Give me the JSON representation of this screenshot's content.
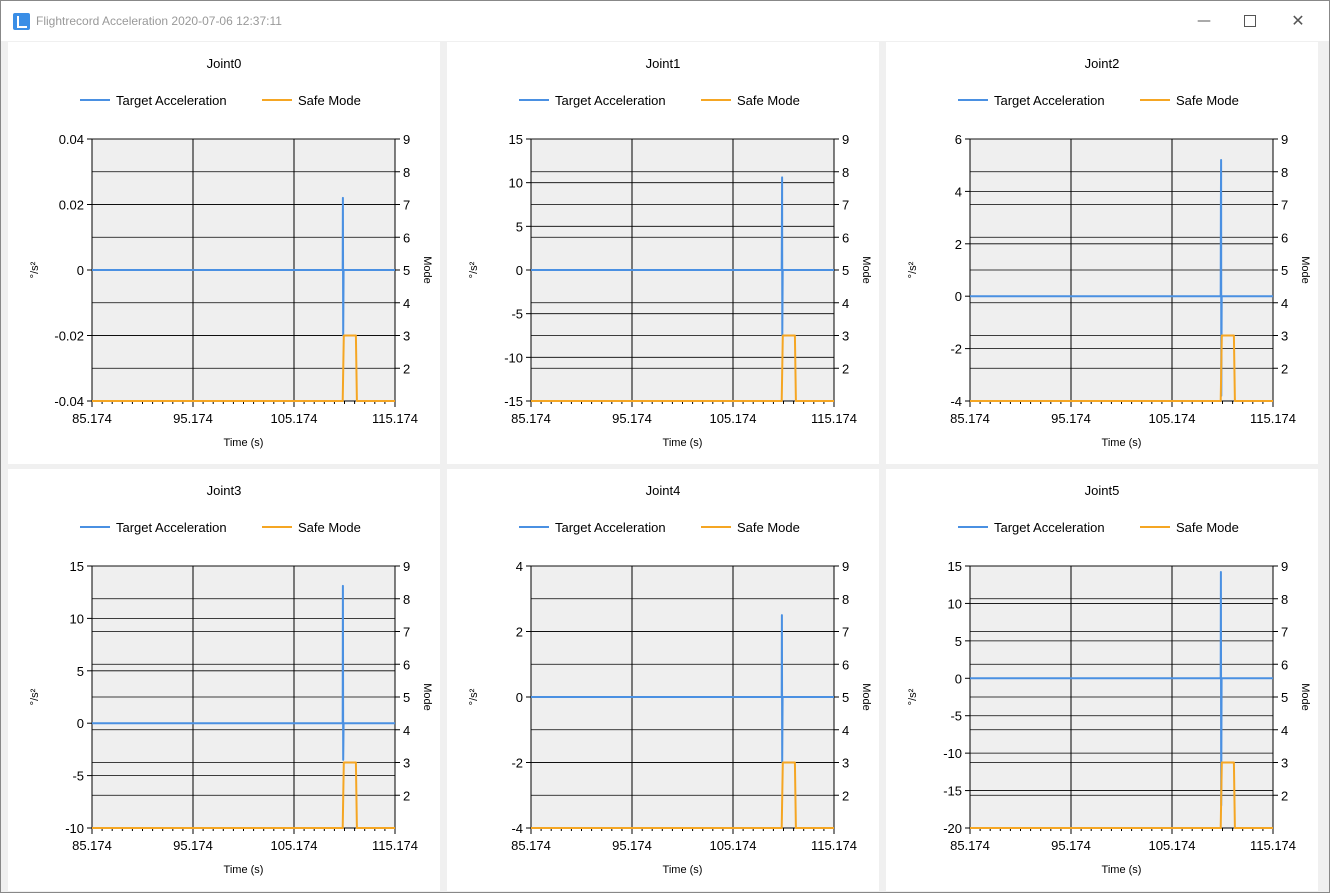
{
  "window": {
    "title": "Flightrecord Acceleration 2020-07-06 12:37:11",
    "minimize_icon": "minimize-icon",
    "maximize_icon": "maximize-icon",
    "close_icon": "close-icon"
  },
  "colors": {
    "target": "#4a90e2",
    "safe": "#f5a623",
    "plot_bg": "#efefef"
  },
  "chart_data": [
    {
      "type": "line",
      "title": "Joint0",
      "xlabel": "Time (s)",
      "ylabel": "°/s²",
      "y2label": "Mode",
      "xlim": [
        85.174,
        115.174
      ],
      "xticks": [
        85.174,
        95.174,
        105.174,
        115.174
      ],
      "xtick_labels": [
        "85.174",
        "95.174",
        "105.174",
        "115.174"
      ],
      "ylim": [
        -0.04,
        0.04
      ],
      "yticks": [
        -0.04,
        -0.02,
        0,
        0.02,
        0.04
      ],
      "ytick_labels": [
        "-0.04",
        "-0.02",
        "0",
        "0.02",
        "0.04"
      ],
      "y2lim": [
        1,
        9
      ],
      "y2ticks": [
        2,
        3,
        4,
        5,
        6,
        7,
        8,
        9
      ],
      "y2tick_labels": [
        "2",
        "3",
        "4",
        "5",
        "6",
        "7",
        "8",
        "9"
      ],
      "legend": "top-center",
      "grid": true,
      "series": [
        {
          "name": "Target Acceleration",
          "axis": "left",
          "points": [
            [
              85.174,
              0
            ],
            [
              110.0,
              0
            ],
            [
              110.02,
              0.022
            ],
            [
              110.05,
              -0.02
            ],
            [
              110.08,
              0
            ],
            [
              115.174,
              0
            ]
          ]
        },
        {
          "name": "Safe Mode",
          "axis": "right",
          "points": [
            [
              85.174,
              1
            ],
            [
              110.0,
              1
            ],
            [
              110.1,
              3
            ],
            [
              111.3,
              3
            ],
            [
              111.4,
              1
            ],
            [
              115.174,
              1
            ]
          ]
        }
      ]
    },
    {
      "type": "line",
      "title": "Joint1",
      "xlabel": "Time (s)",
      "ylabel": "°/s²",
      "y2label": "Mode",
      "xlim": [
        85.174,
        115.174
      ],
      "xticks": [
        85.174,
        95.174,
        105.174,
        115.174
      ],
      "xtick_labels": [
        "85.174",
        "95.174",
        "105.174",
        "115.174"
      ],
      "ylim": [
        -15,
        15
      ],
      "yticks": [
        -15,
        -10,
        -5,
        0,
        5,
        10,
        15
      ],
      "ytick_labels": [
        "-15",
        "-10",
        "-5",
        "0",
        "5",
        "10",
        "15"
      ],
      "y2lim": [
        1,
        9
      ],
      "y2ticks": [
        2,
        3,
        4,
        5,
        6,
        7,
        8,
        9
      ],
      "y2tick_labels": [
        "2",
        "3",
        "4",
        "5",
        "6",
        "7",
        "8",
        "9"
      ],
      "legend": "top-center",
      "grid": true,
      "series": [
        {
          "name": "Target Acceleration",
          "axis": "left",
          "points": [
            [
              85.174,
              0
            ],
            [
              110.0,
              0
            ],
            [
              110.02,
              4.5
            ],
            [
              110.04,
              10.6
            ],
            [
              110.06,
              -7.5
            ],
            [
              110.09,
              0
            ],
            [
              115.174,
              0
            ]
          ]
        },
        {
          "name": "Safe Mode",
          "axis": "right",
          "points": [
            [
              85.174,
              1
            ],
            [
              110.0,
              1
            ],
            [
              110.1,
              3
            ],
            [
              111.3,
              3
            ],
            [
              111.4,
              1
            ],
            [
              115.174,
              1
            ]
          ]
        }
      ]
    },
    {
      "type": "line",
      "title": "Joint2",
      "xlabel": "Time (s)",
      "ylabel": "°/s²",
      "y2label": "Mode",
      "xlim": [
        85.174,
        115.174
      ],
      "xticks": [
        85.174,
        95.174,
        105.174,
        115.174
      ],
      "xtick_labels": [
        "85.174",
        "95.174",
        "105.174",
        "115.174"
      ],
      "ylim": [
        -4,
        6
      ],
      "yticks": [
        -4,
        -2,
        0,
        2,
        4,
        6
      ],
      "ytick_labels": [
        "-4",
        "-2",
        "0",
        "2",
        "4",
        "6"
      ],
      "y2lim": [
        1,
        9
      ],
      "y2ticks": [
        2,
        3,
        4,
        5,
        6,
        7,
        8,
        9
      ],
      "y2tick_labels": [
        "2",
        "3",
        "4",
        "5",
        "6",
        "7",
        "8",
        "9"
      ],
      "legend": "top-center",
      "grid": true,
      "series": [
        {
          "name": "Target Acceleration",
          "axis": "left",
          "points": [
            [
              85.174,
              0
            ],
            [
              110.0,
              0
            ],
            [
              110.02,
              3.5
            ],
            [
              110.04,
              5.2
            ],
            [
              110.06,
              -3.8
            ],
            [
              110.09,
              0
            ],
            [
              115.174,
              0
            ]
          ]
        },
        {
          "name": "Safe Mode",
          "axis": "right",
          "points": [
            [
              85.174,
              1
            ],
            [
              110.0,
              1
            ],
            [
              110.1,
              3
            ],
            [
              111.3,
              3
            ],
            [
              111.4,
              1
            ],
            [
              115.174,
              1
            ]
          ]
        }
      ]
    },
    {
      "type": "line",
      "title": "Joint3",
      "xlabel": "Time (s)",
      "ylabel": "°/s²",
      "y2label": "Mode",
      "xlim": [
        85.174,
        115.174
      ],
      "xticks": [
        85.174,
        95.174,
        105.174,
        115.174
      ],
      "xtick_labels": [
        "85.174",
        "95.174",
        "105.174",
        "115.174"
      ],
      "ylim": [
        -10,
        15
      ],
      "yticks": [
        -10,
        -5,
        0,
        5,
        10,
        15
      ],
      "ytick_labels": [
        "-10",
        "-5",
        "0",
        "5",
        "10",
        "15"
      ],
      "y2lim": [
        1,
        9
      ],
      "y2ticks": [
        2,
        3,
        4,
        5,
        6,
        7,
        8,
        9
      ],
      "y2tick_labels": [
        "2",
        "3",
        "4",
        "5",
        "6",
        "7",
        "8",
        "9"
      ],
      "legend": "top-center",
      "grid": true,
      "series": [
        {
          "name": "Target Acceleration",
          "axis": "left",
          "points": [
            [
              85.174,
              0
            ],
            [
              110.0,
              0
            ],
            [
              110.02,
              13.1
            ],
            [
              110.05,
              -3.5
            ],
            [
              110.08,
              0
            ],
            [
              115.174,
              0
            ]
          ]
        },
        {
          "name": "Safe Mode",
          "axis": "right",
          "points": [
            [
              85.174,
              1
            ],
            [
              110.0,
              1
            ],
            [
              110.1,
              3
            ],
            [
              111.3,
              3
            ],
            [
              111.4,
              1
            ],
            [
              115.174,
              1
            ]
          ]
        }
      ]
    },
    {
      "type": "line",
      "title": "Joint4",
      "xlabel": "Time (s)",
      "ylabel": "°/s²",
      "y2label": "Mode",
      "xlim": [
        85.174,
        115.174
      ],
      "xticks": [
        85.174,
        95.174,
        105.174,
        115.174
      ],
      "xtick_labels": [
        "85.174",
        "95.174",
        "105.174",
        "115.174"
      ],
      "ylim": [
        -4,
        4
      ],
      "yticks": [
        -4,
        -2,
        0,
        2,
        4
      ],
      "ytick_labels": [
        "-4",
        "-2",
        "0",
        "2",
        "4"
      ],
      "y2lim": [
        1,
        9
      ],
      "y2ticks": [
        2,
        3,
        4,
        5,
        6,
        7,
        8,
        9
      ],
      "y2tick_labels": [
        "2",
        "3",
        "4",
        "5",
        "6",
        "7",
        "8",
        "9"
      ],
      "legend": "top-center",
      "grid": true,
      "series": [
        {
          "name": "Target Acceleration",
          "axis": "left",
          "points": [
            [
              85.174,
              0
            ],
            [
              110.0,
              0
            ],
            [
              110.02,
              2.5
            ],
            [
              110.05,
              -2.0
            ],
            [
              110.08,
              0
            ],
            [
              115.174,
              0
            ]
          ]
        },
        {
          "name": "Safe Mode",
          "axis": "right",
          "points": [
            [
              85.174,
              1
            ],
            [
              110.0,
              1
            ],
            [
              110.1,
              3
            ],
            [
              111.3,
              3
            ],
            [
              111.4,
              1
            ],
            [
              115.174,
              1
            ]
          ]
        }
      ]
    },
    {
      "type": "line",
      "title": "Joint5",
      "xlabel": "Time (s)",
      "ylabel": "°/s²",
      "y2label": "Mode",
      "xlim": [
        85.174,
        115.174
      ],
      "xticks": [
        85.174,
        95.174,
        105.174,
        115.174
      ],
      "xtick_labels": [
        "85.174",
        "95.174",
        "105.174",
        "115.174"
      ],
      "ylim": [
        -20,
        15
      ],
      "yticks": [
        -20,
        -15,
        -10,
        -5,
        0,
        5,
        10,
        15
      ],
      "ytick_labels": [
        "-20",
        "-15",
        "-10",
        "-5",
        "0",
        "5",
        "10",
        "15"
      ],
      "y2lim": [
        1,
        9
      ],
      "y2ticks": [
        2,
        3,
        4,
        5,
        6,
        7,
        8,
        9
      ],
      "y2tick_labels": [
        "2",
        "3",
        "4",
        "5",
        "6",
        "7",
        "8",
        "9"
      ],
      "legend": "top-center",
      "grid": true,
      "series": [
        {
          "name": "Target Acceleration",
          "axis": "left",
          "points": [
            [
              85.174,
              0
            ],
            [
              110.0,
              0
            ],
            [
              110.02,
              14.2
            ],
            [
              110.05,
              -17.0
            ],
            [
              110.08,
              0
            ],
            [
              115.174,
              0
            ]
          ]
        },
        {
          "name": "Safe Mode",
          "axis": "right",
          "points": [
            [
              85.174,
              1
            ],
            [
              110.0,
              1
            ],
            [
              110.1,
              3
            ],
            [
              111.3,
              3
            ],
            [
              111.4,
              1
            ],
            [
              115.174,
              1
            ]
          ]
        }
      ]
    }
  ]
}
